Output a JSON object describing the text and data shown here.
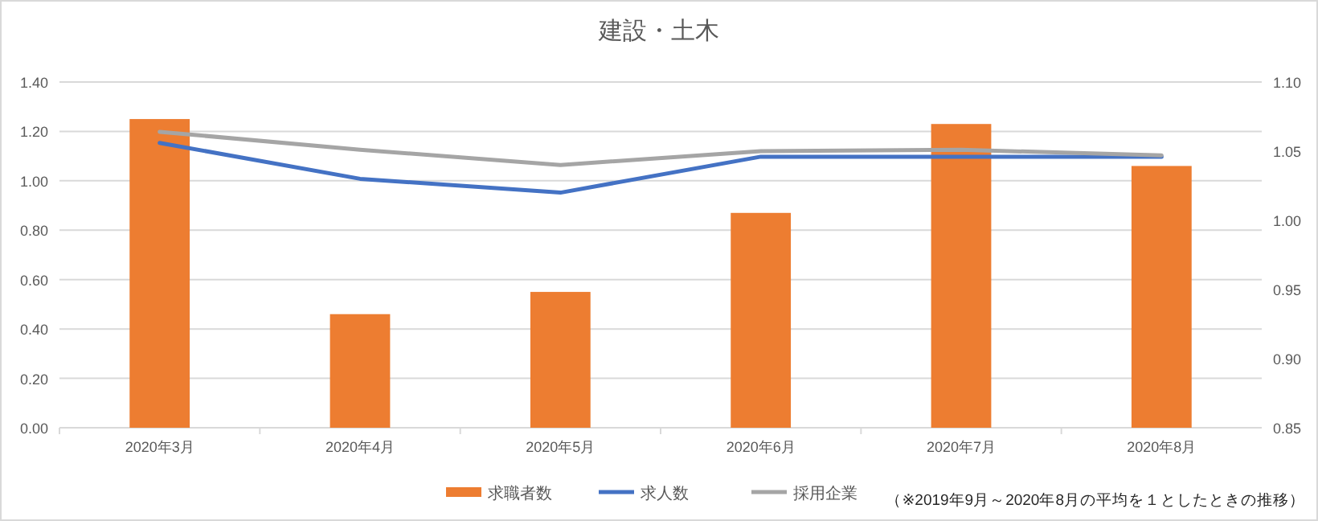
{
  "chart_data": {
    "type": "bar",
    "title": "建設・土木",
    "categories": [
      "2020年3月",
      "2020年4月",
      "2020年5月",
      "2020年6月",
      "2020年7月",
      "2020年8月"
    ],
    "series": [
      {
        "name": "求職者数",
        "color": "#ed7d31",
        "values": [
          1.25,
          0.46,
          0.55,
          0.87,
          1.23,
          1.06
        ]
      },
      {
        "name": "求人数",
        "type": "line",
        "axis": "y2",
        "color": "#4472c4",
        "values": [
          1.056,
          1.03,
          1.02,
          1.046,
          1.046,
          1.046
        ]
      },
      {
        "name": "採用企業",
        "type": "line",
        "axis": "y2",
        "color": "#a5a5a5",
        "values": [
          1.064,
          1.051,
          1.04,
          1.05,
          1.051,
          1.047
        ]
      }
    ],
    "ylim": [
      0,
      1.4
    ],
    "yticks": [
      {
        "value": 0,
        "label": "0.00"
      },
      {
        "value": 0.2,
        "label": "0.20"
      },
      {
        "value": 0.4,
        "label": "0.40"
      },
      {
        "value": 0.6,
        "label": "0.60"
      },
      {
        "value": 0.8,
        "label": "0.80"
      },
      {
        "value": 1,
        "label": "1.00"
      },
      {
        "value": 1.2,
        "label": "1.20"
      },
      {
        "value": 1.4,
        "label": "1.40"
      }
    ],
    "y2lim": [
      0.85,
      1.1
    ],
    "y2ticks": [
      {
        "value": 0.85,
        "label": "0.85"
      },
      {
        "value": 0.9,
        "label": "0.90"
      },
      {
        "value": 0.95,
        "label": "0.95"
      },
      {
        "value": 1,
        "label": "1.00"
      },
      {
        "value": 1.05,
        "label": "1.05"
      },
      {
        "value": 1.1,
        "label": "1.10"
      }
    ],
    "grid": "y",
    "legend": "bottom",
    "marker": "none",
    "line_style": "solid",
    "annotations": [
      "（※2019年9月～2020年8月の平均を１としたときの推移）"
    ]
  }
}
